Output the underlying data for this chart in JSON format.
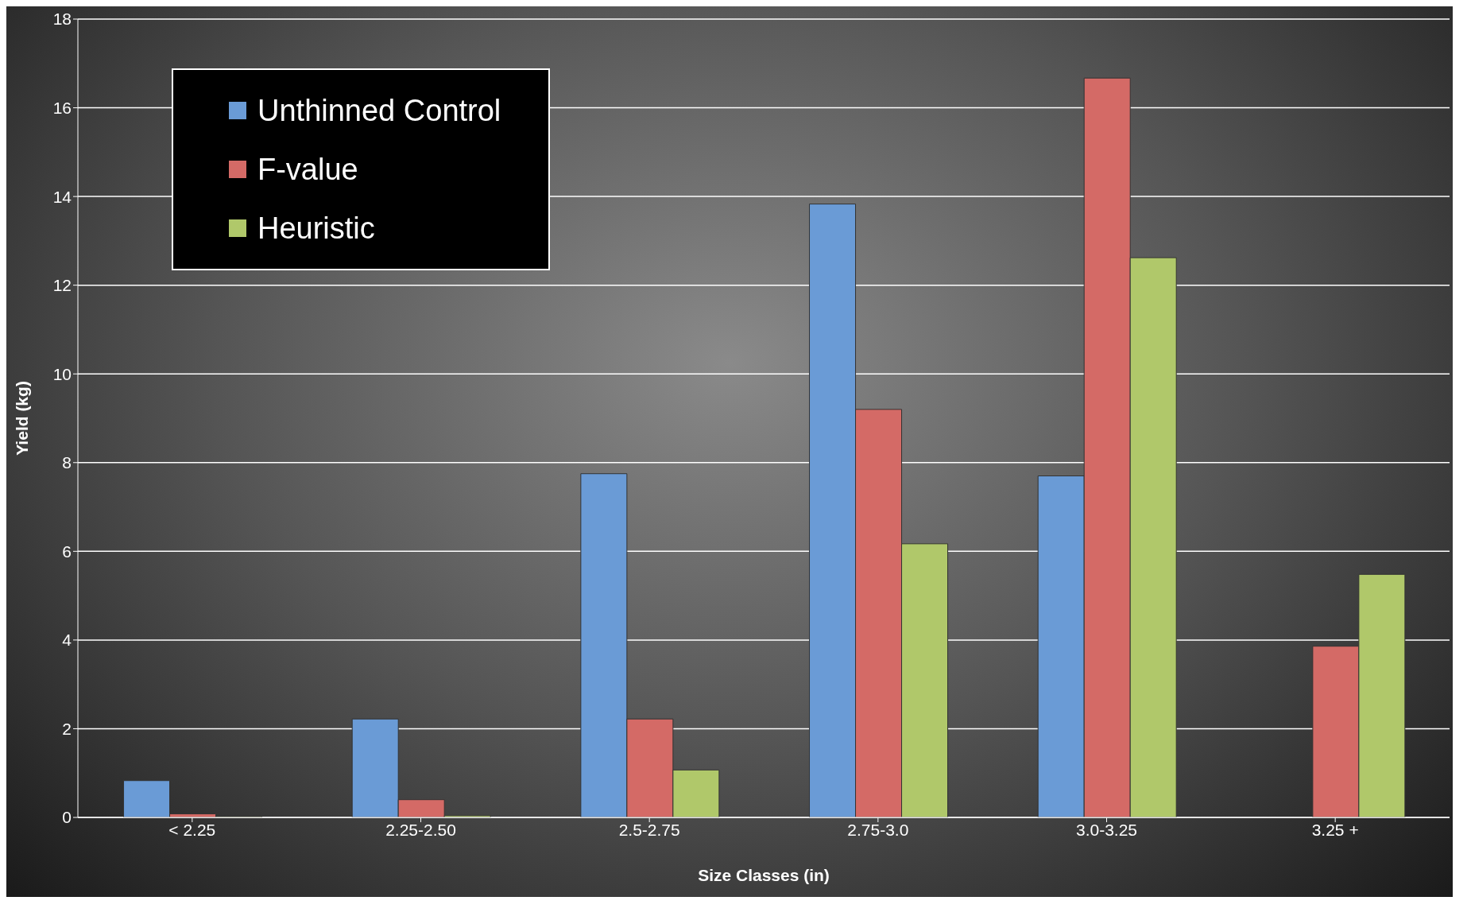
{
  "chart_data": {
    "type": "bar",
    "xlabel": "Size Classes (in)",
    "ylabel": "Yield (kg)",
    "categories": [
      "< 2.25",
      "2.25-2.50",
      "2.5-2.75",
      "2.75-3.0",
      "3.0-3.25",
      "3.25 +"
    ],
    "series": [
      {
        "name": "Unthinned Control",
        "color": "#6a9bd6",
        "values": [
          0.83,
          2.22,
          7.75,
          13.83,
          7.7,
          0
        ]
      },
      {
        "name": "F-value",
        "color": "#d46a66",
        "values": [
          0.08,
          0.4,
          2.22,
          9.2,
          16.67,
          3.86
        ]
      },
      {
        "name": "Heuristic",
        "color": "#b0c86a",
        "values": [
          0.02,
          0.04,
          1.07,
          6.17,
          12.62,
          5.48
        ]
      }
    ],
    "ylim": [
      0,
      18
    ],
    "yticks": [
      0,
      2,
      4,
      6,
      8,
      10,
      12,
      14,
      16,
      18
    ],
    "grid": "y",
    "legend": "top left"
  }
}
